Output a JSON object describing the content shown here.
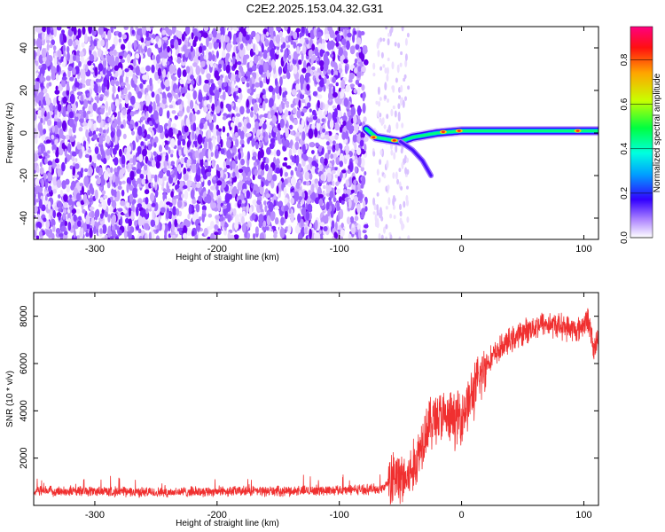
{
  "title": "C2E2.2025.153.04.32.G31",
  "chart_data": [
    {
      "type": "heatmap",
      "xlabel": "Height of straight line (km)",
      "ylabel": "Frequency (Hz)",
      "xlim": [
        -350,
        112
      ],
      "ylim": [
        -50,
        50
      ],
      "xticks": [
        -300,
        -200,
        -100,
        0,
        100
      ],
      "yticks": [
        -40,
        -20,
        0,
        20,
        40
      ],
      "noise_region_x": [
        -350,
        -78
      ],
      "signal_start_x": -78,
      "signal_curve": [
        {
          "x": -78,
          "y": 2
        },
        {
          "x": -70,
          "y": -2
        },
        {
          "x": -60,
          "y": -3
        },
        {
          "x": -50,
          "y": -4
        },
        {
          "x": -40,
          "y": -2
        },
        {
          "x": -30,
          "y": -1
        },
        {
          "x": -20,
          "y": 0
        },
        {
          "x": -10,
          "y": 0.5
        },
        {
          "x": 0,
          "y": 1
        },
        {
          "x": 20,
          "y": 1
        },
        {
          "x": 50,
          "y": 1
        },
        {
          "x": 80,
          "y": 1
        },
        {
          "x": 112,
          "y": 1
        }
      ],
      "branch": [
        {
          "x": -50,
          "y": -4
        },
        {
          "x": -40,
          "y": -8
        },
        {
          "x": -32,
          "y": -13
        },
        {
          "x": -25,
          "y": -20
        }
      ],
      "colorbar": {
        "label": "Normalized spectral amplitude",
        "range": [
          0,
          0.95
        ],
        "ticks": [
          "0.0",
          "0.2",
          "0.4",
          "0.6",
          "0.8"
        ]
      }
    },
    {
      "type": "line",
      "xlabel": "Height of straight line (km)",
      "ylabel": "SNR (10 * v/v)",
      "xlim": [
        -350,
        112
      ],
      "ylim": [
        0,
        9000
      ],
      "xticks": [
        -300,
        -200,
        -100,
        0,
        100
      ],
      "yticks": [
        2000,
        4000,
        6000,
        8000
      ],
      "color": "#f03030",
      "envelope": [
        {
          "x": -350,
          "y": 600
        },
        {
          "x": -300,
          "y": 600
        },
        {
          "x": -250,
          "y": 550
        },
        {
          "x": -200,
          "y": 600
        },
        {
          "x": -150,
          "y": 600
        },
        {
          "x": -100,
          "y": 650
        },
        {
          "x": -65,
          "y": 700
        },
        {
          "x": -55,
          "y": 1200
        },
        {
          "x": -45,
          "y": 1100
        },
        {
          "x": -38,
          "y": 1700
        },
        {
          "x": -30,
          "y": 3200
        },
        {
          "x": -20,
          "y": 3800
        },
        {
          "x": -10,
          "y": 3600
        },
        {
          "x": 0,
          "y": 3800
        },
        {
          "x": 10,
          "y": 4800
        },
        {
          "x": 20,
          "y": 6000
        },
        {
          "x": 35,
          "y": 6800
        },
        {
          "x": 50,
          "y": 7300
        },
        {
          "x": 65,
          "y": 7700
        },
        {
          "x": 80,
          "y": 7600
        },
        {
          "x": 95,
          "y": 7400
        },
        {
          "x": 104,
          "y": 7900
        },
        {
          "x": 108,
          "y": 6500
        },
        {
          "x": 112,
          "y": 7200
        }
      ]
    }
  ]
}
